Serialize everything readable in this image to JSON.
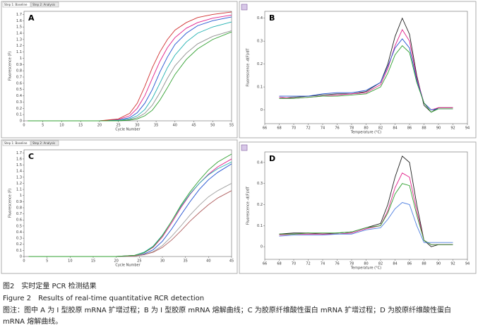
{
  "chart_data": [
    {
      "type": "line",
      "label": "A",
      "tabs": [
        "Step 1: Baseline",
        "Step 2: Analysis"
      ],
      "xlabel": "Cycle Number",
      "ylabel": "Fluorescence (F)",
      "x": [
        1,
        10,
        20,
        25,
        28,
        30,
        32,
        34,
        36,
        38,
        40,
        43,
        46,
        50,
        55
      ],
      "xlim": [
        0,
        55
      ],
      "xticks": [
        0,
        5,
        10,
        15,
        20,
        25,
        30,
        35,
        40,
        45,
        50,
        55
      ],
      "ylim": [
        0,
        1.75
      ],
      "yticks": [
        0,
        0.1,
        0.2,
        0.3,
        0.4,
        0.5,
        0.6,
        0.7,
        0.8,
        0.9,
        1,
        1.1,
        1.2,
        1.3,
        1.4,
        1.5,
        1.6,
        1.7
      ],
      "series": [
        {
          "color": "#e0208a",
          "values": [
            0,
            0,
            0,
            0.02,
            0.08,
            0.2,
            0.4,
            0.68,
            0.95,
            1.17,
            1.33,
            1.48,
            1.57,
            1.64,
            1.69
          ]
        },
        {
          "color": "#2050d0",
          "values": [
            0,
            0,
            0,
            0.01,
            0.05,
            0.13,
            0.28,
            0.5,
            0.78,
            1.02,
            1.22,
            1.4,
            1.52,
            1.6,
            1.66
          ]
        },
        {
          "color": "#20b0b0",
          "values": [
            0,
            0,
            0,
            0.01,
            0.03,
            0.08,
            0.18,
            0.36,
            0.6,
            0.85,
            1.05,
            1.26,
            1.4,
            1.5,
            1.58
          ]
        },
        {
          "color": "#909090",
          "values": [
            0,
            0,
            0,
            0,
            0.02,
            0.05,
            0.12,
            0.25,
            0.45,
            0.68,
            0.88,
            1.08,
            1.23,
            1.35,
            1.44
          ]
        },
        {
          "color": "#d03030",
          "values": [
            0,
            0,
            0,
            0.03,
            0.12,
            0.28,
            0.55,
            0.85,
            1.1,
            1.3,
            1.45,
            1.57,
            1.65,
            1.7,
            1.74
          ]
        },
        {
          "color": "#30a030",
          "values": [
            0,
            0,
            0,
            0,
            0.01,
            0.03,
            0.08,
            0.17,
            0.33,
            0.53,
            0.74,
            0.98,
            1.15,
            1.3,
            1.42
          ]
        }
      ]
    },
    {
      "type": "line",
      "label": "B",
      "xlabel": "Temperature (°C)",
      "ylabel": "Fluorescence -d(F)/dT",
      "x": [
        68,
        70,
        72,
        74,
        76,
        78,
        80,
        82,
        83,
        84,
        85,
        86,
        87,
        88,
        89,
        90,
        92
      ],
      "xlim": [
        66,
        94
      ],
      "xticks": [
        66,
        68,
        70,
        72,
        74,
        76,
        78,
        80,
        82,
        84,
        86,
        88,
        90,
        92,
        94
      ],
      "ylim": [
        -0.06,
        0.43
      ],
      "yticks": [
        0,
        0.1,
        0.2,
        0.3,
        0.4
      ],
      "series": [
        {
          "color": "#202020",
          "values": [
            0.05,
            0.055,
            0.06,
            0.065,
            0.07,
            0.07,
            0.08,
            0.12,
            0.2,
            0.32,
            0.4,
            0.33,
            0.15,
            0.02,
            -0.01,
            0.01,
            0.01
          ]
        },
        {
          "color": "#e0208a",
          "values": [
            0.055,
            0.05,
            0.055,
            0.06,
            0.065,
            0.07,
            0.075,
            0.11,
            0.18,
            0.28,
            0.35,
            0.3,
            0.14,
            0.03,
            0,
            0.01,
            0.01
          ]
        },
        {
          "color": "#2050d0",
          "values": [
            0.06,
            0.06,
            0.06,
            0.07,
            0.075,
            0.075,
            0.085,
            0.12,
            0.19,
            0.27,
            0.31,
            0.27,
            0.13,
            0.03,
            0,
            0.005,
            0.005
          ]
        },
        {
          "color": "#30a030",
          "values": [
            0.05,
            0.05,
            0.055,
            0.06,
            0.06,
            0.065,
            0.07,
            0.1,
            0.16,
            0.24,
            0.28,
            0.25,
            0.12,
            0.03,
            -0.01,
            0.005,
            0.005
          ]
        }
      ]
    },
    {
      "type": "line",
      "label": "C",
      "tabs": [
        "Step 1: Baseline",
        "Step 2: Analysis"
      ],
      "xlabel": "Cycle Number",
      "ylabel": "Fluorescence (F)",
      "x": [
        1,
        10,
        20,
        24,
        26,
        28,
        30,
        32,
        34,
        36,
        38,
        40,
        42,
        45
      ],
      "xlim": [
        0,
        45
      ],
      "xticks": [
        0,
        5,
        10,
        15,
        20,
        25,
        30,
        35,
        40,
        45
      ],
      "ylim": [
        0,
        1.75
      ],
      "yticks": [
        0,
        0.1,
        0.2,
        0.3,
        0.4,
        0.5,
        0.6,
        0.7,
        0.8,
        0.9,
        1,
        1.1,
        1.2,
        1.3,
        1.4,
        1.5,
        1.6,
        1.7
      ],
      "series": [
        {
          "color": "#e0208a",
          "values": [
            0,
            0,
            0,
            0.02,
            0.06,
            0.15,
            0.32,
            0.55,
            0.8,
            1.02,
            1.2,
            1.35,
            1.47,
            1.6
          ]
        },
        {
          "color": "#2050d0",
          "values": [
            0,
            0,
            0,
            0.01,
            0.04,
            0.11,
            0.25,
            0.45,
            0.68,
            0.9,
            1.1,
            1.26,
            1.38,
            1.52
          ]
        },
        {
          "color": "#20b0b0",
          "values": [
            0,
            0,
            0,
            0.02,
            0.07,
            0.17,
            0.35,
            0.58,
            0.82,
            1.03,
            1.2,
            1.34,
            1.44,
            1.55
          ]
        },
        {
          "color": "#a0a0a0",
          "values": [
            0,
            0,
            0,
            0.01,
            0.03,
            0.08,
            0.18,
            0.33,
            0.5,
            0.68,
            0.84,
            0.98,
            1.08,
            1.2
          ]
        },
        {
          "color": "#b06060",
          "values": [
            0,
            0,
            0,
            0.01,
            0.03,
            0.07,
            0.15,
            0.27,
            0.42,
            0.58,
            0.72,
            0.85,
            0.96,
            1.08
          ]
        },
        {
          "color": "#30a030",
          "values": [
            0,
            0,
            0,
            0.02,
            0.06,
            0.16,
            0.34,
            0.58,
            0.84,
            1.06,
            1.25,
            1.42,
            1.55,
            1.68
          ]
        }
      ]
    },
    {
      "type": "line",
      "label": "D",
      "xlabel": "Temperature (°C)",
      "ylabel": "Fluorescence -d(F)/dT",
      "x": [
        68,
        70,
        72,
        74,
        76,
        78,
        80,
        82,
        83,
        84,
        85,
        86,
        87,
        88,
        89,
        90,
        92
      ],
      "xlim": [
        66,
        94
      ],
      "xticks": [
        66,
        68,
        70,
        72,
        74,
        76,
        78,
        80,
        82,
        84,
        86,
        88,
        90,
        92,
        94
      ],
      "ylim": [
        -0.06,
        0.45
      ],
      "yticks": [
        0,
        0.1,
        0.2,
        0.3,
        0.4
      ],
      "series": [
        {
          "color": "#202020",
          "values": [
            0.06,
            0.065,
            0.065,
            0.06,
            0.065,
            0.07,
            0.09,
            0.11,
            0.2,
            0.33,
            0.43,
            0.4,
            0.2,
            0.03,
            0,
            0.01,
            0.01
          ]
        },
        {
          "color": "#e0208a",
          "values": [
            0.055,
            0.06,
            0.06,
            0.06,
            0.06,
            0.065,
            0.085,
            0.1,
            0.17,
            0.28,
            0.35,
            0.33,
            0.17,
            0.03,
            0.01,
            0.01,
            0.01
          ]
        },
        {
          "color": "#30a030",
          "values": [
            0.06,
            0.06,
            0.065,
            0.065,
            0.065,
            0.07,
            0.09,
            0.1,
            0.16,
            0.25,
            0.3,
            0.29,
            0.15,
            0.03,
            0.01,
            0.01,
            0.01
          ]
        },
        {
          "color": "#5080e0",
          "values": [
            0.05,
            0.055,
            0.055,
            0.055,
            0.06,
            0.06,
            0.08,
            0.09,
            0.13,
            0.18,
            0.21,
            0.2,
            0.1,
            0.02,
            0.02,
            0.02,
            0.02
          ]
        }
      ]
    }
  ],
  "caption": {
    "zh_title": "图2　实时定量 PCR 检测结果",
    "en_title": "Figure 2　Results of real-time quantitative RCR detection",
    "note": "图注：图中 A 为 Ⅰ 型胶原 mRNA 扩增过程；B 为 Ⅰ 型胶原 mRNA 熔解曲线；C 为胶原纤维酸性蛋白 mRNA 扩增过程；D 为胶原纤维酸性蛋白 mRNA 熔解曲线。"
  }
}
